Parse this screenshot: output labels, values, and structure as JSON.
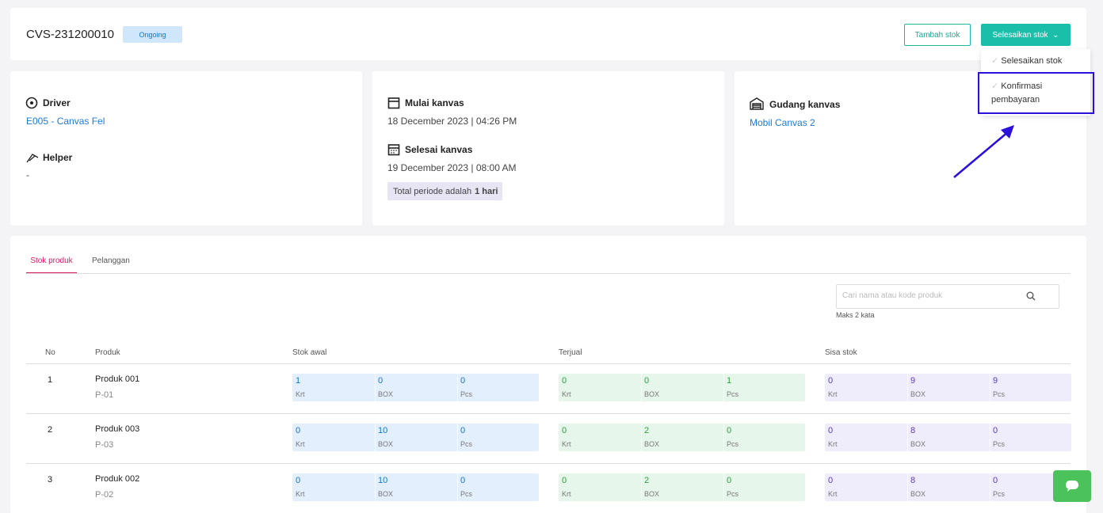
{
  "header": {
    "code": "CVS-231200010",
    "status": "Ongoing",
    "buttons": [
      "Tambah stok",
      "Selesaikan stok"
    ]
  },
  "dropdown": {
    "items": [
      "Selesaikan stok",
      "Konfirmasi pembayaran"
    ]
  },
  "cards": {
    "driver": {
      "label": "Driver",
      "value": "E005 - Canvas Fel"
    },
    "helper": {
      "label": "Helper",
      "value": "-"
    },
    "start": {
      "label": "Mulai kanvas",
      "value": "18 December 2023 | 04:26 PM"
    },
    "end": {
      "label": "Selesai kanvas",
      "value": "19 December 2023 | 08:00 AM"
    },
    "period": {
      "text": "Total periode adalah",
      "bold": "1 hari"
    },
    "warehouse": {
      "label": "Gudang kanvas",
      "value": "Mobil Canvas 2"
    }
  },
  "tabs": [
    "Stok produk",
    "Pelanggan"
  ],
  "search": {
    "placeholder": "Cari nama atau kode produk",
    "hint": "Maks 2 kata"
  },
  "table": {
    "columns": [
      "No",
      "Produk",
      "Stok awal",
      "Terjual",
      "Sisa stok"
    ],
    "units": [
      "Krt",
      "BOX",
      "Pcs"
    ],
    "rows": [
      {
        "no": 1,
        "name": "Produk 001",
        "code": "P-01",
        "stok_awal": [
          1,
          0,
          0
        ],
        "terjual": [
          0,
          0,
          1
        ],
        "sisa": [
          0,
          9,
          9
        ]
      },
      {
        "no": 2,
        "name": "Produk 003",
        "code": "P-03",
        "stok_awal": [
          0,
          10,
          0
        ],
        "terjual": [
          0,
          2,
          0
        ],
        "sisa": [
          0,
          8,
          0
        ]
      },
      {
        "no": 3,
        "name": "Produk 002",
        "code": "P-02",
        "stok_awal": [
          0,
          10,
          0
        ],
        "terjual": [
          0,
          2,
          0
        ],
        "sisa": [
          0,
          8,
          0
        ]
      }
    ]
  }
}
